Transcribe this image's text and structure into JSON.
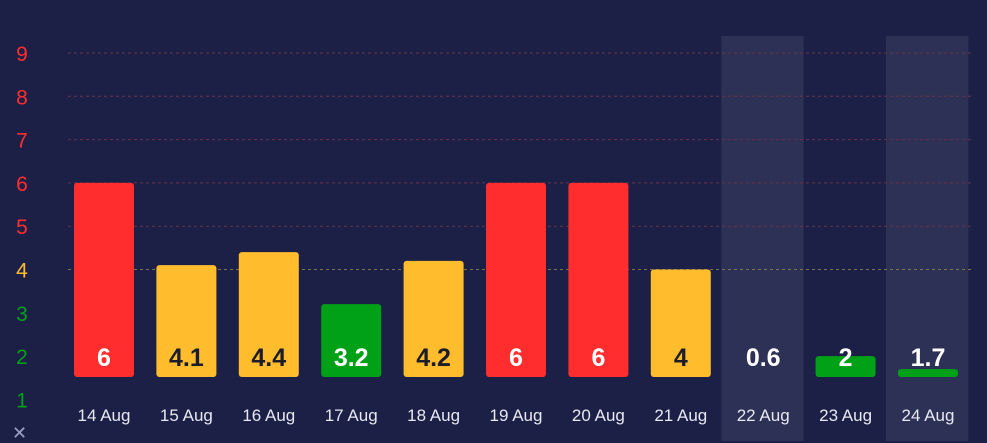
{
  "chart_data": {
    "type": "bar",
    "categories": [
      "14 Aug",
      "15 Aug",
      "16 Aug",
      "17 Aug",
      "18 Aug",
      "19 Aug",
      "20 Aug",
      "21 Aug",
      "22 Aug",
      "23 Aug",
      "24 Aug"
    ],
    "values": [
      6,
      4.1,
      4.4,
      3.2,
      4.2,
      6,
      6,
      4,
      0.6,
      2,
      1.7
    ],
    "value_labels": [
      "6",
      "4.1",
      "4.4",
      "3.2",
      "4.2",
      "6",
      "6",
      "4",
      "0.6",
      "2",
      "1.7"
    ],
    "highlighted_categories": [
      "22 Aug",
      "24 Aug"
    ],
    "y_ticks": [
      "1",
      "2",
      "3",
      "4",
      "5",
      "6",
      "7",
      "8",
      "9"
    ],
    "ylim": [
      1,
      9
    ],
    "grid": true,
    "title": "",
    "xlabel": "",
    "ylabel": "",
    "colors": {
      "high": "#ff2d2d",
      "moderate": "#ffbd2e",
      "low": "#00a116",
      "background": "#1d2046",
      "highlight_column": "#2e3156"
    }
  },
  "controls": {
    "close_glyph": "✕"
  }
}
